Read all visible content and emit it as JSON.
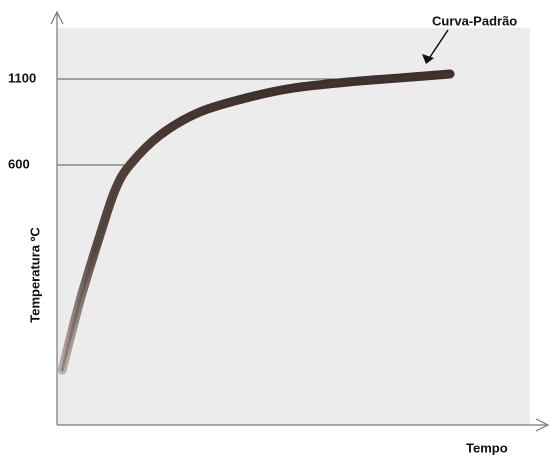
{
  "chart_data": {
    "type": "line",
    "y_label": "Temperatura ºC",
    "x_label": "Tempo",
    "annotation": "Curva-Padrão",
    "x": [
      1.1,
      4.9,
      9.1,
      12.3,
      15.4,
      21.8,
      30.2,
      40.8,
      50.1,
      61.9,
      72.5,
      83.1
    ],
    "series": [
      {
        "color": "#4b3a35",
        "values": [
          -592,
          -185,
          193,
          455,
          600,
          774,
          908,
          995,
          1048,
          1083,
          1106,
          1129
        ]
      }
    ],
    "xlim": [
      0,
      100
    ],
    "ylim": [
      -912,
      1472
    ],
    "yticks": [
      600,
      1100
    ],
    "grid": true
  }
}
